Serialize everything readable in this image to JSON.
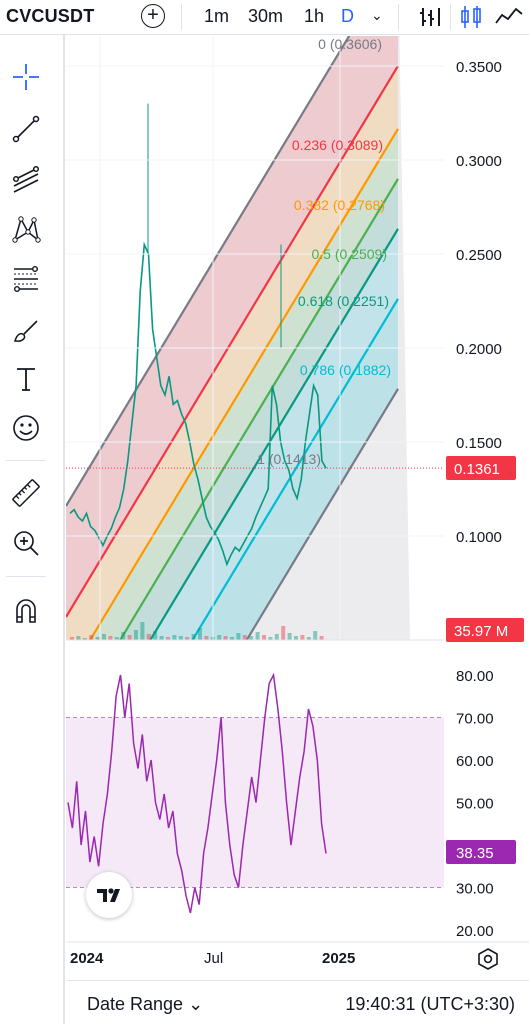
{
  "header": {
    "symbol": "CVCUSDT",
    "timeframes": [
      "1m",
      "30m",
      "1h",
      "D"
    ],
    "active_timeframe": "D"
  },
  "sidebar": {
    "tools": [
      "crosshair-icon",
      "trend-line-icon",
      "fib-channel-icon",
      "pattern-icon",
      "gann-icon",
      "brush-icon",
      "text-icon",
      "emoji-icon",
      "ruler-icon",
      "zoom-in-icon",
      "magnet-icon"
    ]
  },
  "price_axis": {
    "labels": [
      "0.3500",
      "0.3000",
      "0.2500",
      "0.2000",
      "0.1500",
      "0.1000"
    ],
    "current_price": "0.1361",
    "current_price_color": "#f23645",
    "volume_label": "35.97 M",
    "volume_label_color": "#f23645"
  },
  "fib_levels": [
    {
      "label": "0 (0.3606)",
      "color": "#787b86"
    },
    {
      "label": "0.236 (0.3089)",
      "color": "#f23645"
    },
    {
      "label": "0.382 (0.2768)",
      "color": "#ff9800"
    },
    {
      "label": "0.5 (0.2509)",
      "color": "#4caf50"
    },
    {
      "label": "0.618 (0.2251)",
      "color": "#089981"
    },
    {
      "label": "0.786 (0.1882)",
      "color": "#00bcd4"
    },
    {
      "label": "1 (0.1413)",
      "color": "#787b86"
    }
  ],
  "rsi": {
    "axis_labels": [
      "80.00",
      "70.00",
      "60.00",
      "50.00",
      "40.00",
      "30.00",
      "20.00"
    ],
    "current_value": "38.35",
    "color": "#9c27b0"
  },
  "time_axis": {
    "labels": [
      "2024",
      "Jul",
      "2025"
    ]
  },
  "bottom": {
    "date_range_label": "Date Range",
    "clock": "19:40:31 (UTC+3:30)"
  }
}
